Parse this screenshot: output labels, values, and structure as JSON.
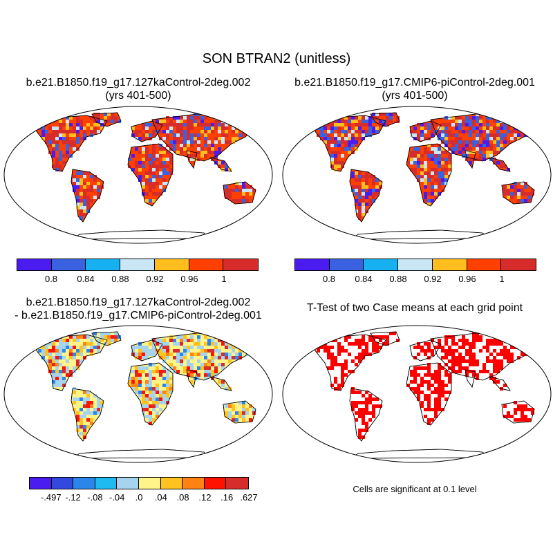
{
  "title": "SON BTRAN2 (unitless)",
  "panels": [
    {
      "id": "case1",
      "title_line1": "b.e21.B1850.f19_g17.127kaControl-2deg.002",
      "title_line2": "(yrs 401-500)"
    },
    {
      "id": "case2",
      "title_line1": "b.e21.B1850.f19_g17.CMIP6-piControl-2deg.001",
      "title_line2": "(yrs 401-500)"
    },
    {
      "id": "difference",
      "title_line1": "b.e21.B1850.f19_g17.127kaControl-2deg.002",
      "title_line2": "- b.e21.B1850.f19_g17.CMIP6-piControl-2deg.001"
    },
    {
      "id": "ttest",
      "title_line1": "T-Test of two Case means at each grid point",
      "note": "Cells are significant at 0.1 level"
    }
  ],
  "colorbar_cases": {
    "colors": [
      "#4a1cf0",
      "#3a62e0",
      "#17b0f0",
      "#c8e6f5",
      "#ffbe1e",
      "#ff4000",
      "#d62c2c"
    ],
    "labels": [
      "0.8",
      "0.84",
      "0.88",
      "0.92",
      "0.96",
      "1"
    ]
  },
  "colorbar_diff": {
    "colors": [
      "#4a1cf0",
      "#3348dc",
      "#2c86ea",
      "#1ebaf0",
      "#a6d4ee",
      "#fff48a",
      "#ffc21e",
      "#ff8212",
      "#ff1200",
      "#d62c2c"
    ],
    "labels": [
      "-.497",
      "-.12",
      "-.08",
      "-.04",
      ".0",
      ".04",
      ".08",
      ".12",
      ".16",
      ".627"
    ]
  },
  "significance_color": "#ff0000"
}
